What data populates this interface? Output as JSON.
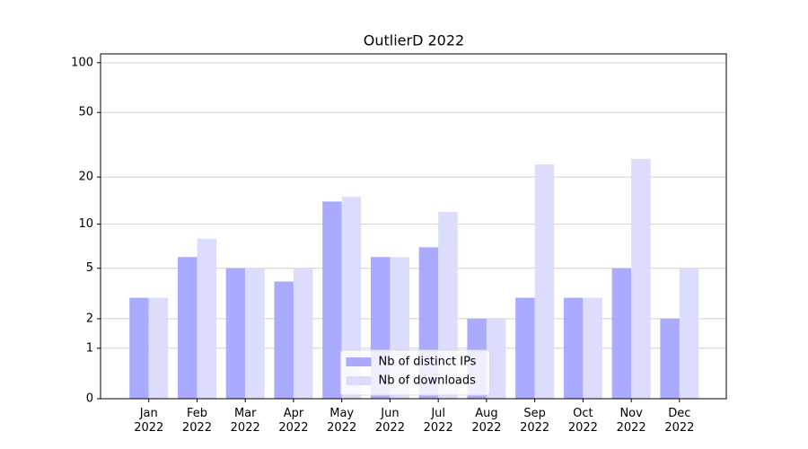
{
  "chart_data": {
    "type": "bar",
    "title": "OutlierD 2022",
    "categories": [
      "Jan\n2022",
      "Feb\n2022",
      "Mar\n2022",
      "Apr\n2022",
      "May\n2022",
      "Jun\n2022",
      "Jul\n2022",
      "Aug\n2022",
      "Sep\n2022",
      "Oct\n2022",
      "Nov\n2022",
      "Dec\n2022"
    ],
    "series": [
      {
        "name": "Nb of distinct IPs",
        "color": "#aaaaff",
        "values": [
          3,
          6,
          5,
          4,
          14,
          6,
          7,
          2,
          3,
          3,
          5,
          2
        ]
      },
      {
        "name": "Nb of downloads",
        "color": "#dcdcfc",
        "values": [
          3,
          8,
          5,
          5,
          15,
          6,
          12,
          2,
          24,
          3,
          26,
          5
        ]
      }
    ],
    "yscale": "log1p",
    "ylim": [
      0,
      113
    ],
    "yticks": [
      0,
      1,
      2,
      5,
      10,
      20,
      50,
      100
    ],
    "grid": true,
    "legend": "lower center"
  }
}
